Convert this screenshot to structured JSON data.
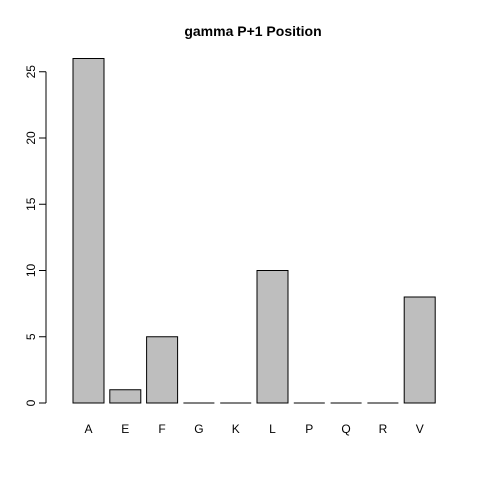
{
  "chart_data": {
    "type": "bar",
    "title": "gamma P+1 Position",
    "xlabel": "",
    "ylabel": "",
    "categories": [
      "A",
      "E",
      "F",
      "G",
      "K",
      "L",
      "P",
      "Q",
      "R",
      "V"
    ],
    "values": [
      26,
      1,
      5,
      0,
      0,
      10,
      0,
      0,
      0,
      8
    ],
    "ylim": [
      0,
      26
    ],
    "yticks": [
      0,
      5,
      10,
      15,
      20,
      25
    ],
    "grid": false,
    "legend": "none",
    "colors": {
      "bar_fill": "#bebebe",
      "bar_stroke": "#000000",
      "axis": "#000000",
      "background": "#ffffff"
    }
  }
}
